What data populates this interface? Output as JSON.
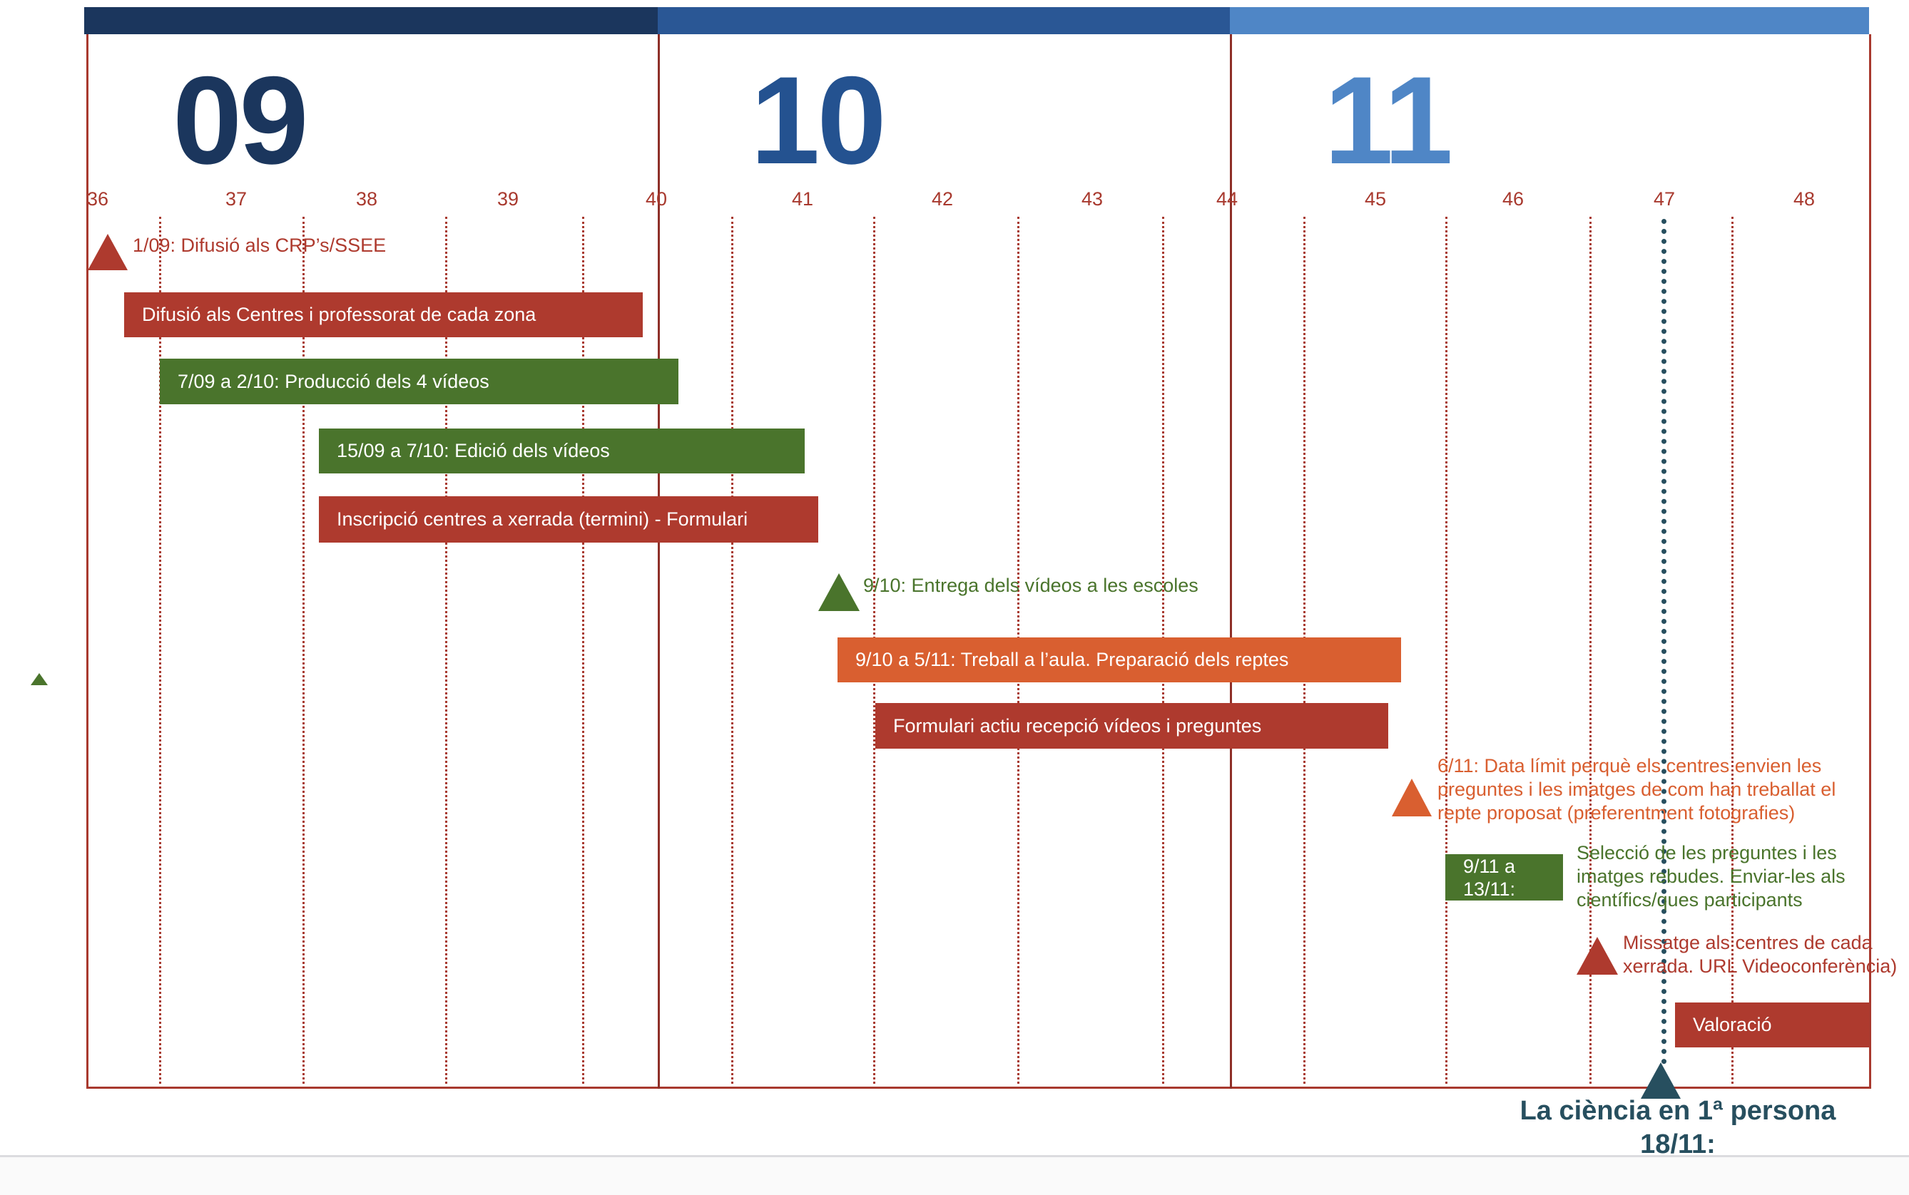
{
  "colors": {
    "month_09": "#1b365d",
    "month_10": "#2a5795",
    "month_11": "#4f86c6",
    "red": "#ae3a2e",
    "green": "#4a742c",
    "orange": "#d95f30",
    "milestone": "#274f5f"
  },
  "months": [
    "09",
    "10",
    "11"
  ],
  "weeks": [
    "36",
    "37",
    "38",
    "39",
    "40",
    "41",
    "42",
    "43",
    "44",
    "45",
    "46",
    "47",
    "48"
  ],
  "items": {
    "crp": "1/09: Difusió als CRP’s/SSEE",
    "difusio": "Difusió als Centres i professorat de cada zona",
    "produccio": "7/09 a 2/10: Producció dels 4 vídeos",
    "edicio": "15/09 a 7/10: Edició dels vídeos",
    "inscripcio": "Inscripció centres a xerrada (termini) - Formulari",
    "entrega": "9/10: Entrega dels vídeos a les escoles",
    "treball": "9/10 a 5/11: Treball a l’aula. Preparació dels reptes",
    "formulari": "Formulari actiu recepció vídeos i preguntes",
    "limit": "6/11: Data límit perquè els centres envien les preguntes i les imatges de com han treballat el repte proposat (preferentment fotografies)",
    "seleccio_bar": "9/11 a 13/11:",
    "seleccio": "Selecció de les preguntes i les imatges rebudes. Enviar-les als científics/ques participants",
    "missatge": "Missatge als centres de cada xerrada. URL Videoconferència)",
    "valoracio": "Valoració"
  },
  "milestone": {
    "title": "La ciència en 1ª persona",
    "date": "18/11:"
  }
}
